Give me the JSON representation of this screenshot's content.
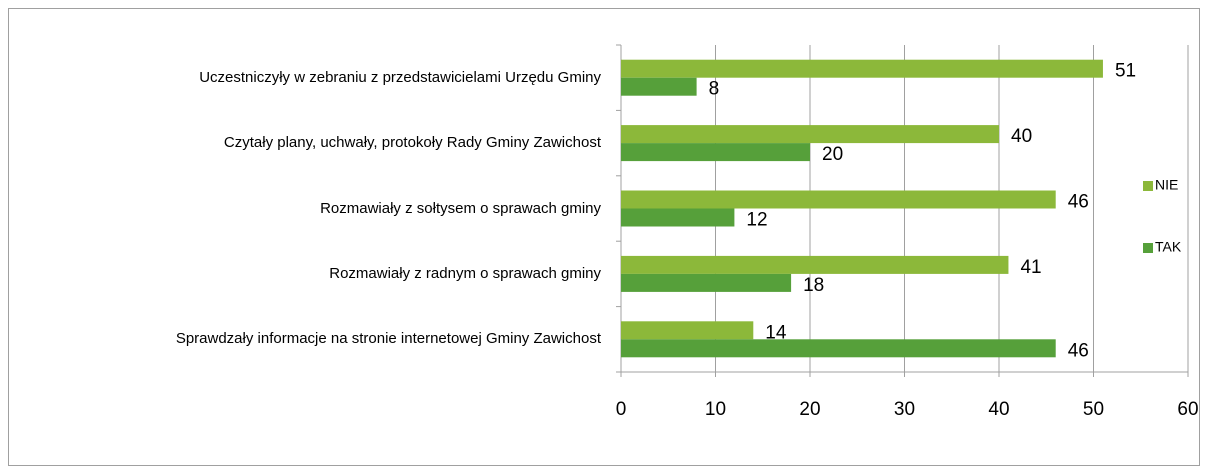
{
  "chart_data": {
    "type": "bar",
    "orientation": "horizontal",
    "categories": [
      "Uczestniczyły w zebraniu z przedstawicielami Urzędu Gminy",
      "Czytały plany, uchwały, protokoły Rady Gminy Zawichost",
      "Rozmawiały z sołtysem o sprawach gminy",
      "Rozmawiały z radnym o sprawach gminy",
      "Sprawdzały informacje na stronie internetowej Gminy Zawichost"
    ],
    "series": [
      {
        "name": "NIE",
        "color": "#8cb83a",
        "values": [
          51,
          40,
          46,
          41,
          14
        ]
      },
      {
        "name": "TAK",
        "color": "#56a03a",
        "values": [
          8,
          20,
          12,
          18,
          46
        ]
      }
    ],
    "xlim": [
      0,
      60
    ],
    "xticks": [
      0,
      10,
      20,
      30,
      40,
      50,
      60
    ],
    "grid": true,
    "legend": "right"
  }
}
